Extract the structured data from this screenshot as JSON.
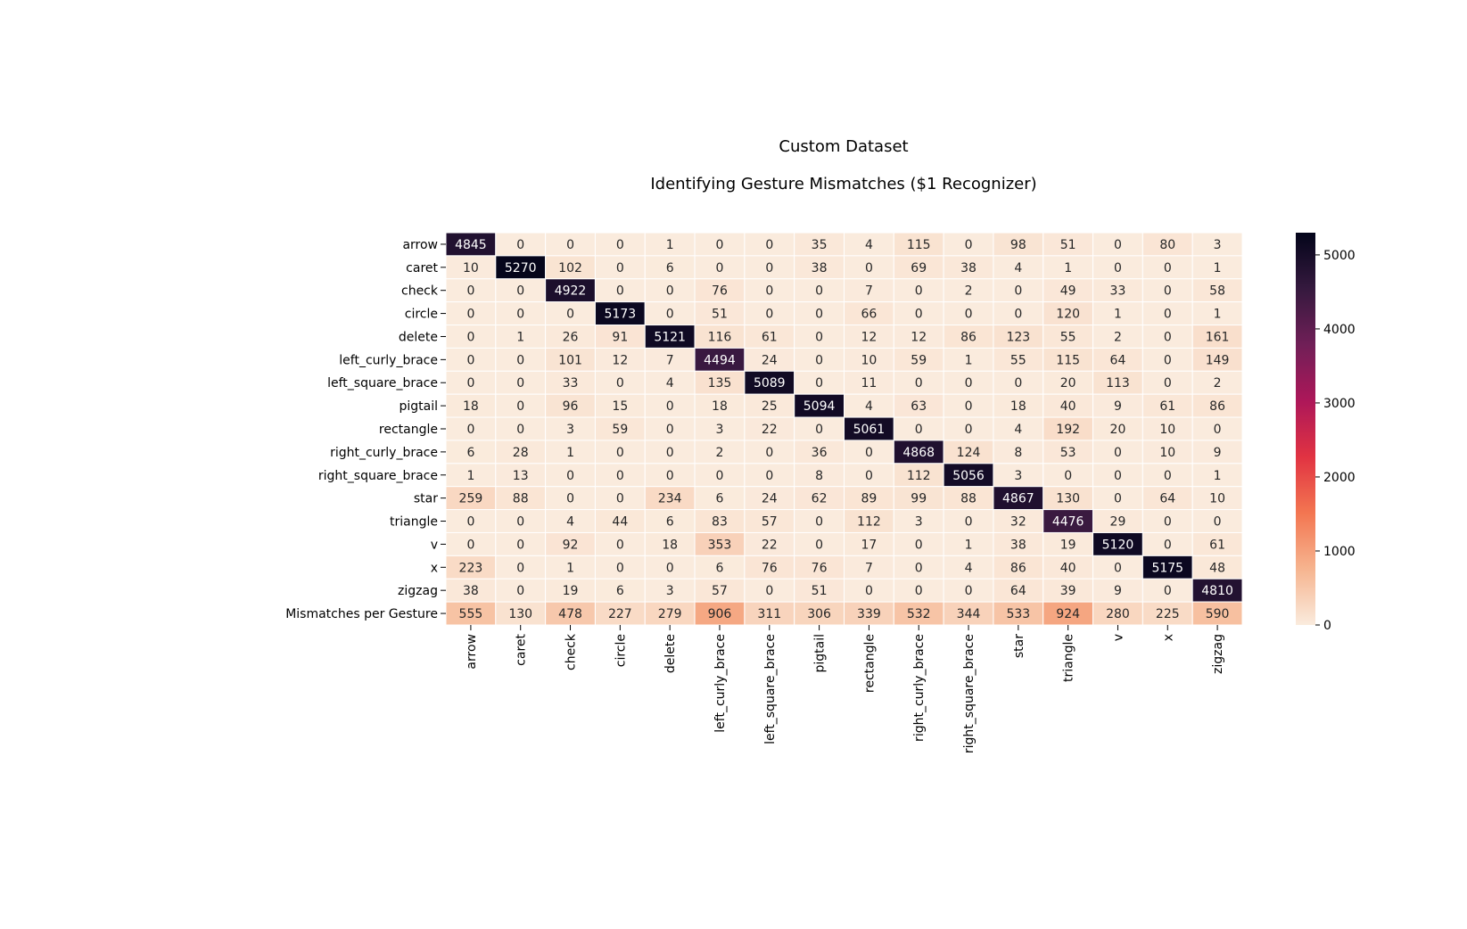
{
  "chart_data": {
    "type": "heatmap",
    "title": "Custom Dataset",
    "subtitle": "Identifying Gesture Mismatches ($1 Recognizer)",
    "row_labels": [
      "arrow",
      "caret",
      "check",
      "circle",
      "delete",
      "left_curly_brace",
      "left_square_brace",
      "pigtail",
      "rectangle",
      "right_curly_brace",
      "right_square_brace",
      "star",
      "triangle",
      "v",
      "x",
      "zigzag",
      "Mismatches per Gesture"
    ],
    "col_labels": [
      "arrow",
      "caret",
      "check",
      "circle",
      "delete",
      "left_curly_brace",
      "left_square_brace",
      "pigtail",
      "rectangle",
      "right_curly_brace",
      "right_square_brace",
      "star",
      "triangle",
      "v",
      "x",
      "zigzag"
    ],
    "values": [
      [
        4845,
        0,
        0,
        0,
        1,
        0,
        0,
        35,
        4,
        115,
        0,
        98,
        51,
        0,
        80,
        3
      ],
      [
        10,
        5270,
        102,
        0,
        6,
        0,
        0,
        38,
        0,
        69,
        38,
        4,
        1,
        0,
        0,
        1
      ],
      [
        0,
        0,
        4922,
        0,
        0,
        76,
        0,
        0,
        7,
        0,
        2,
        0,
        49,
        33,
        0,
        58
      ],
      [
        0,
        0,
        0,
        5173,
        0,
        51,
        0,
        0,
        66,
        0,
        0,
        0,
        120,
        1,
        0,
        1
      ],
      [
        0,
        1,
        26,
        91,
        5121,
        116,
        61,
        0,
        12,
        12,
        86,
        123,
        55,
        2,
        0,
        161
      ],
      [
        0,
        0,
        101,
        12,
        7,
        4494,
        24,
        0,
        10,
        59,
        1,
        55,
        115,
        64,
        0,
        149
      ],
      [
        0,
        0,
        33,
        0,
        4,
        135,
        5089,
        0,
        11,
        0,
        0,
        0,
        20,
        113,
        0,
        2
      ],
      [
        18,
        0,
        96,
        15,
        0,
        18,
        25,
        5094,
        4,
        63,
        0,
        18,
        40,
        9,
        61,
        86
      ],
      [
        0,
        0,
        3,
        59,
        0,
        3,
        22,
        0,
        5061,
        0,
        0,
        4,
        192,
        20,
        10,
        0
      ],
      [
        6,
        28,
        1,
        0,
        0,
        2,
        0,
        36,
        0,
        4868,
        124,
        8,
        53,
        0,
        10,
        9
      ],
      [
        1,
        13,
        0,
        0,
        0,
        0,
        0,
        8,
        0,
        112,
        5056,
        3,
        0,
        0,
        0,
        1
      ],
      [
        259,
        88,
        0,
        0,
        234,
        6,
        24,
        62,
        89,
        99,
        88,
        4867,
        130,
        0,
        64,
        10
      ],
      [
        0,
        0,
        4,
        44,
        6,
        83,
        57,
        0,
        112,
        3,
        0,
        32,
        4476,
        29,
        0,
        0
      ],
      [
        0,
        0,
        92,
        0,
        18,
        353,
        22,
        0,
        17,
        0,
        1,
        38,
        19,
        5120,
        0,
        61
      ],
      [
        223,
        0,
        1,
        0,
        0,
        6,
        76,
        76,
        7,
        0,
        4,
        86,
        40,
        0,
        5175,
        48
      ],
      [
        38,
        0,
        19,
        6,
        3,
        57,
        0,
        51,
        0,
        0,
        0,
        64,
        39,
        9,
        0,
        4810
      ],
      [
        555,
        130,
        478,
        227,
        279,
        906,
        311,
        306,
        339,
        532,
        344,
        533,
        924,
        280,
        225,
        590
      ]
    ],
    "colorbar": {
      "min": 0,
      "max": 5300,
      "ticks": [
        0,
        1000,
        2000,
        3000,
        4000,
        5000
      ]
    },
    "colormap": "rocket_r",
    "colormap_stops": [
      "#faebdd",
      "#f6b48f",
      "#f37651",
      "#e13342",
      "#ad1759",
      "#701f57",
      "#35193e",
      "#03051a"
    ],
    "annotation_colors": {
      "dark": "#262626",
      "light": "#ffffff"
    },
    "grid_line_color": "#ffffff"
  }
}
